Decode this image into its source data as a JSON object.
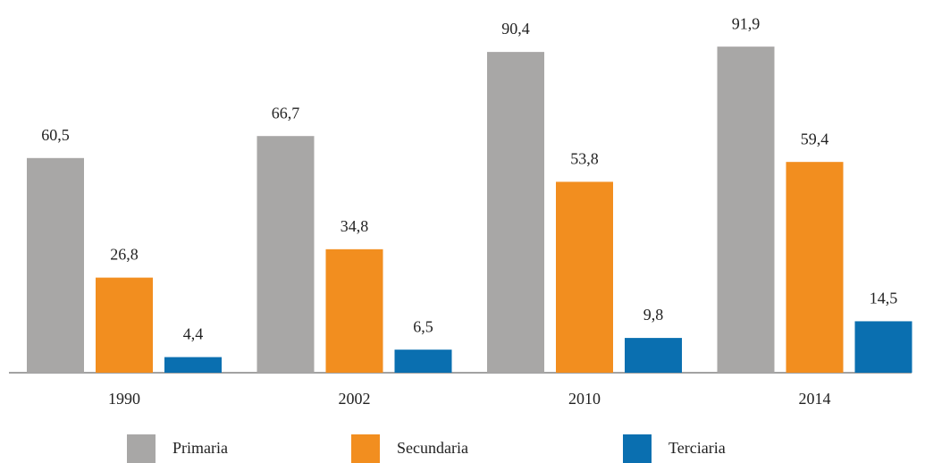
{
  "chart_data": {
    "type": "bar",
    "categories": [
      "1990",
      "2002",
      "2010",
      "2014"
    ],
    "series": [
      {
        "name": "Primaria",
        "color": "#a8a7a6",
        "values": [
          60.5,
          66.7,
          90.4,
          91.9
        ],
        "value_labels": [
          "60,5",
          "66,7",
          "90,4",
          "91,9"
        ]
      },
      {
        "name": "Secundaria",
        "color": "#f28e1f",
        "values": [
          26.8,
          34.8,
          53.8,
          59.4
        ],
        "value_labels": [
          "26,8",
          "34,8",
          "53,8",
          "59,4"
        ]
      },
      {
        "name": "Terciaria",
        "color": "#0a6fb0",
        "values": [
          4.4,
          6.5,
          9.8,
          14.5
        ],
        "value_labels": [
          "4,4",
          "6,5",
          "9,8",
          "14,5"
        ]
      }
    ],
    "legend": "bottom"
  }
}
